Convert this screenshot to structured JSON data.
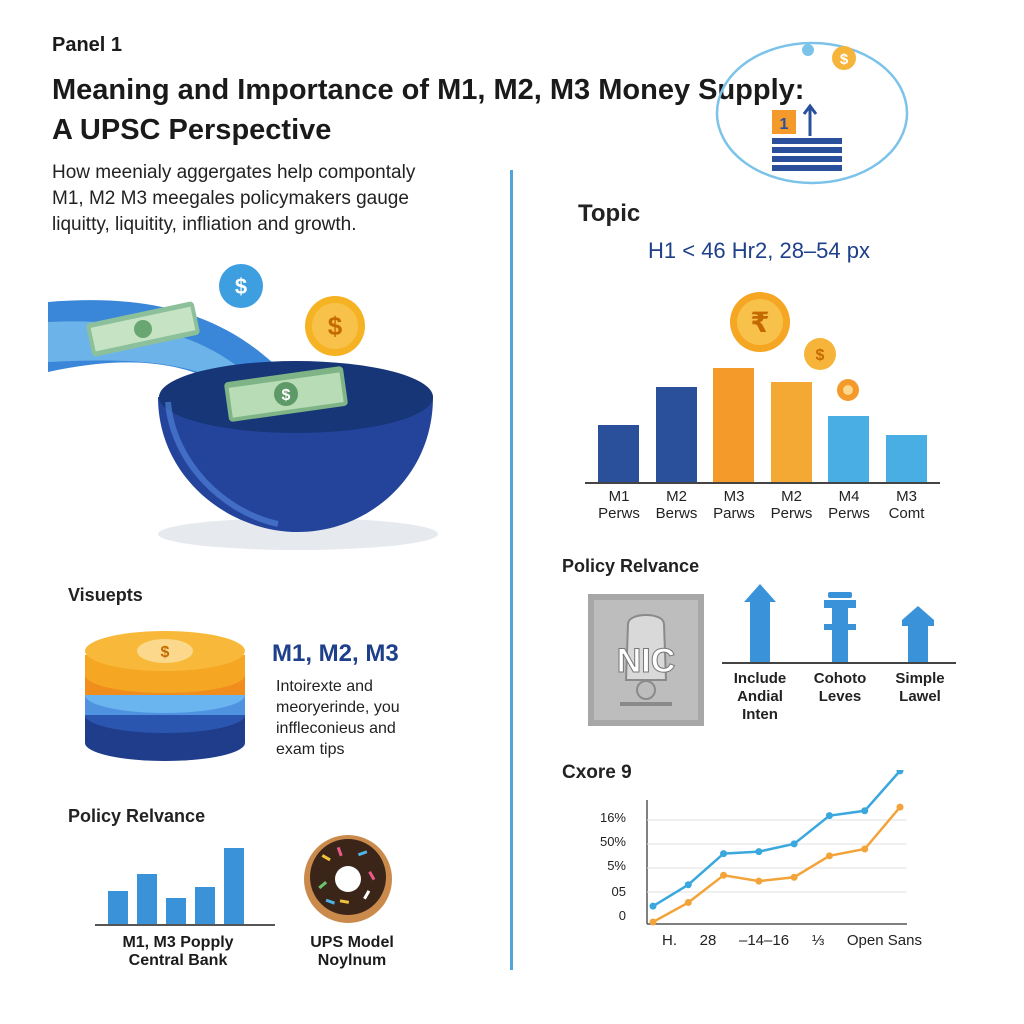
{
  "panel_label": "Panel 1",
  "title_line1": "Meaning and Importance of M1, M2, M3 Money Supply:",
  "title_line2": "A UPSC Perspective",
  "subtitle_line1": "How meenialy aggergates help compontaly",
  "subtitle_line2": "M1, M2 M3 meegales policymakers gauge",
  "subtitle_line3": "liquitty, liquitity, infliation and growth.",
  "left": {
    "visuepts_heading": "Visuepts",
    "m_heading": "M1, M2, M3",
    "m_desc_line1": "Intoirexte and",
    "m_desc_line2": "meoryerinde, you",
    "m_desc_line3": "inffleconieus and",
    "m_desc_line4": "exam tips",
    "policy_heading": "Policy Relvance",
    "mini_label_line1": "M1, M3 Popply",
    "mini_label_line2": "Central Bank",
    "donut_label_line1": "UPS Model",
    "donut_label_line2": "Noylnum",
    "coin_symbol": "$",
    "mini_bars": [
      0.4,
      0.6,
      0.32,
      0.45,
      0.9
    ]
  },
  "right": {
    "topic_heading": "Topic",
    "topic_sub": "H1 < 46 Hr2, 28–54 px",
    "rupee_symbol": "₹",
    "dollar_symbol": "$",
    "bar_chart": [
      {
        "top": "M1",
        "bottom": "Perws",
        "value": 0.5,
        "color": "#2a4f9b"
      },
      {
        "top": "M2",
        "bottom": "Berws",
        "value": 0.83,
        "color": "#2a4f9b"
      },
      {
        "top": "M3",
        "bottom": "Parws",
        "value": 1.0,
        "color": "#f39a2b"
      },
      {
        "top": "M2",
        "bottom": "Perws",
        "value": 0.88,
        "color": "#f3a934"
      },
      {
        "top": "M4",
        "bottom": "Perws",
        "value": 0.58,
        "color": "#48aee3"
      },
      {
        "top": "M3",
        "bottom": "Comt",
        "value": 0.41,
        "color": "#48aee3"
      }
    ],
    "policy_heading": "Policy Relvance",
    "emblem_text": "NIC",
    "policy_items": [
      {
        "line1": "Include",
        "line2": "Andial",
        "line3": "Inten"
      },
      {
        "line1": "Cohoto",
        "line2": "Leves",
        "line3": ""
      },
      {
        "line1": "Simple",
        "line2": "Lawel",
        "line3": ""
      }
    ],
    "line_heading": "Cxore 9",
    "yticks": [
      "16%",
      "50%",
      "5%",
      "05",
      "0"
    ],
    "xlabels": [
      "H.",
      "28",
      "–14–16",
      "⅓",
      "Open Sans"
    ]
  },
  "line_chart": {
    "type": "line",
    "series": [
      {
        "color": "#3aa7dd",
        "values": [
          0.06,
          0.28,
          0.6,
          0.62,
          0.7,
          0.99,
          1.04,
          1.45
        ]
      },
      {
        "color": "#f2a43a",
        "values": [
          0.0,
          0.2,
          0.48,
          0.42,
          0.46,
          0.68,
          0.75,
          1.18
        ]
      }
    ]
  },
  "colors": {
    "accent_blue": "#2a4f9b",
    "light_blue": "#48aee3",
    "orange": "#f39a2b",
    "divider": "#4fa6d8"
  }
}
